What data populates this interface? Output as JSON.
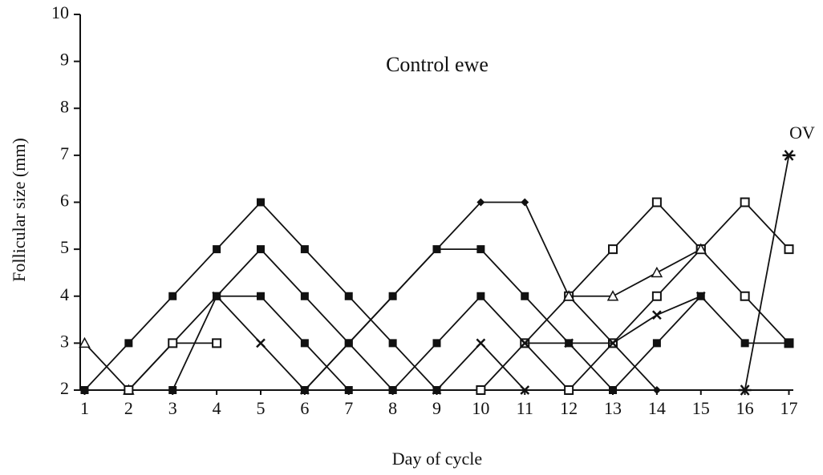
{
  "chart_data": {
    "type": "line",
    "title": "Control ewe",
    "x_label": "Day of cycle",
    "y_label": "Follicular size (mm)",
    "annotation": "OV",
    "x": [
      1,
      2,
      3,
      4,
      5,
      6,
      7,
      8,
      9,
      10,
      11,
      12,
      13,
      14,
      15,
      16,
      17
    ],
    "xlim": [
      0.9,
      17.1
    ],
    "xticks": [
      1,
      2,
      3,
      4,
      5,
      6,
      7,
      8,
      9,
      10,
      11,
      12,
      13,
      14,
      15,
      16,
      17
    ],
    "ylim": [
      2,
      10
    ],
    "yticks": [
      2,
      3,
      4,
      5,
      6,
      7,
      8,
      9,
      10
    ],
    "series": [
      {
        "color": "#111",
        "marker": "square",
        "values": [
          2,
          3,
          4,
          5,
          6,
          5,
          4,
          3,
          2,
          null,
          null,
          null,
          null,
          null,
          null,
          null,
          null
        ]
      },
      {
        "color": "#111",
        "marker": "square",
        "values": [
          null,
          2,
          3,
          4,
          5,
          4,
          3,
          2,
          null,
          null,
          null,
          null,
          null,
          null,
          null,
          null,
          null
        ]
      },
      {
        "color": "#111",
        "marker": "square",
        "values": [
          null,
          null,
          2,
          4,
          4,
          3,
          2,
          null,
          null,
          null,
          null,
          null,
          null,
          null,
          null,
          null,
          null
        ]
      },
      {
        "color": "#111",
        "marker": "triangle",
        "values": [
          3,
          2,
          null,
          null,
          null,
          null,
          null,
          null,
          null,
          null,
          null,
          null,
          null,
          null,
          null,
          null,
          null
        ]
      },
      {
        "color": "#111",
        "marker": "open-square",
        "values": [
          null,
          2,
          3,
          3,
          null,
          null,
          null,
          null,
          null,
          null,
          null,
          null,
          null,
          null,
          null,
          null,
          null
        ]
      },
      {
        "color": "#111",
        "marker": "cross",
        "values": [
          null,
          null,
          null,
          4,
          3,
          2,
          null,
          null,
          null,
          null,
          null,
          null,
          null,
          null,
          null,
          null,
          null
        ]
      },
      {
        "color": "#111",
        "marker": "diamond",
        "values": [
          null,
          null,
          null,
          null,
          null,
          2,
          3,
          4,
          5,
          6,
          6,
          4,
          3,
          2,
          null,
          null,
          null
        ]
      },
      {
        "color": "#111",
        "marker": "square",
        "values": [
          null,
          null,
          null,
          null,
          null,
          2,
          3,
          4,
          5,
          5,
          4,
          3,
          2,
          null,
          null,
          null,
          null
        ]
      },
      {
        "color": "#111",
        "marker": "square",
        "values": [
          null,
          null,
          null,
          null,
          null,
          null,
          null,
          2,
          3,
          4,
          3,
          2,
          null,
          null,
          null,
          null,
          null
        ]
      },
      {
        "color": "#111",
        "marker": "cross",
        "values": [
          null,
          null,
          null,
          null,
          null,
          null,
          null,
          null,
          2,
          3,
          2,
          null,
          null,
          null,
          null,
          null,
          null
        ]
      },
      {
        "color": "#111",
        "marker": "open-square",
        "values": [
          null,
          null,
          null,
          null,
          null,
          null,
          null,
          null,
          null,
          2,
          3,
          4,
          5,
          6,
          5,
          4,
          3
        ]
      },
      {
        "color": "#111",
        "marker": "open-square",
        "values": [
          null,
          null,
          null,
          null,
          null,
          null,
          null,
          null,
          null,
          null,
          null,
          2,
          3,
          4,
          5,
          6,
          5
        ]
      },
      {
        "color": "#111",
        "marker": "triangle",
        "values": [
          null,
          null,
          null,
          null,
          null,
          null,
          null,
          null,
          null,
          null,
          null,
          4,
          4,
          4.5,
          5,
          null,
          null
        ]
      },
      {
        "color": "#111",
        "marker": "cross",
        "values": [
          null,
          null,
          null,
          null,
          null,
          null,
          null,
          null,
          null,
          null,
          3,
          3,
          3,
          3.6,
          4,
          null,
          null
        ]
      },
      {
        "color": "#111",
        "marker": "square",
        "values": [
          null,
          null,
          null,
          null,
          null,
          null,
          null,
          null,
          null,
          null,
          null,
          null,
          2,
          3,
          4,
          3,
          3
        ]
      },
      {
        "color": "#111",
        "marker": "star",
        "values": [
          null,
          null,
          null,
          null,
          null,
          null,
          null,
          null,
          null,
          null,
          null,
          null,
          null,
          null,
          null,
          2,
          7
        ]
      }
    ]
  }
}
